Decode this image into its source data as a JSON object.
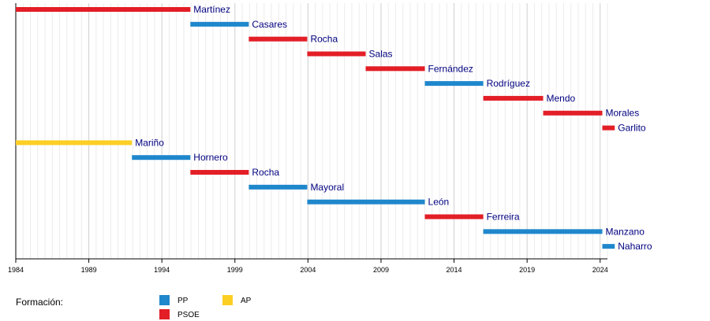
{
  "chart_data": {
    "type": "timeline",
    "xlim": [
      1984,
      2024.5
    ],
    "x_ticks": [
      "1984",
      "1989",
      "1994",
      "1999",
      "2004",
      "2009",
      "2014",
      "2019",
      "2024"
    ],
    "grid": true,
    "rows": [
      {
        "name": "Martínez",
        "start": 1984.0,
        "end": 1995.95,
        "party": "PSOE"
      },
      {
        "name": "Casares",
        "start": 1995.95,
        "end": 1999.95,
        "party": "PP"
      },
      {
        "name": "Rocha",
        "start": 1999.95,
        "end": 2003.95,
        "party": "PSOE"
      },
      {
        "name": "Salas",
        "start": 2003.95,
        "end": 2007.95,
        "party": "PSOE"
      },
      {
        "name": "Fernández",
        "start": 2007.95,
        "end": 2012.0,
        "party": "PSOE"
      },
      {
        "name": "Rodríguez",
        "start": 2012.0,
        "end": 2016.0,
        "party": "PP"
      },
      {
        "name": "Mendo",
        "start": 2016.0,
        "end": 2020.1,
        "party": "PSOE"
      },
      {
        "name": "Morales",
        "start": 2020.1,
        "end": 2024.15,
        "party": "PSOE"
      },
      {
        "name": "Garlito",
        "start": 2024.15,
        "end": 2025.0,
        "party": "PSOE"
      },
      {
        "name": "Mariño",
        "start": 1984.0,
        "end": 1991.95,
        "party": "AP"
      },
      {
        "name": "Hornero",
        "start": 1991.95,
        "end": 1995.95,
        "party": "PP"
      },
      {
        "name": "Rocha",
        "start": 1995.95,
        "end": 1999.95,
        "party": "PSOE"
      },
      {
        "name": "Mayoral",
        "start": 1999.95,
        "end": 2003.95,
        "party": "PP"
      },
      {
        "name": "León",
        "start": 2003.95,
        "end": 2012.0,
        "party": "PP"
      },
      {
        "name": "Ferreira",
        "start": 2012.0,
        "end": 2016.0,
        "party": "PSOE"
      },
      {
        "name": "Manzano",
        "start": 2016.0,
        "end": 2024.15,
        "party": "PP"
      },
      {
        "name": "Naharro",
        "start": 2024.15,
        "end": 2025.0,
        "party": "PP"
      }
    ],
    "party_colors": {
      "PP": "#1f87cc",
      "PSOE": "#e31e26",
      "AP": "#fccf25"
    },
    "legend": {
      "title": "Formación:",
      "placement": "bottom-left",
      "items": [
        {
          "party": "PP",
          "label": "PP"
        },
        {
          "party": "PSOE",
          "label": "PSOE"
        },
        {
          "party": "AP",
          "label": "AP"
        }
      ]
    }
  }
}
